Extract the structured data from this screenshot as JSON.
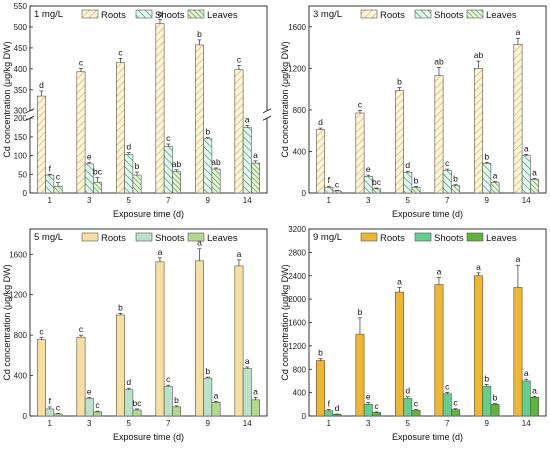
{
  "figure": {
    "series_names": [
      "Roots",
      "Shoots",
      "Leaves"
    ],
    "xlabel": "Exposure time (d)",
    "ylabel": "Cd concentration (μg/kg DW)"
  },
  "chart_data": [
    {
      "type": "bar",
      "title": "1 mg/L",
      "categories": [
        "1",
        "3",
        "5",
        "7",
        "9",
        "14"
      ],
      "xlabel": "Exposure time (d)",
      "ylabel": "Cd concentration (μg/kg DW)",
      "axis_break": true,
      "lower_range": [
        0,
        200
      ],
      "upper_range": [
        300,
        550
      ],
      "lower_ticks": [
        0,
        50,
        100,
        150,
        200
      ],
      "upper_ticks": [
        300,
        350,
        400,
        450,
        500,
        550
      ],
      "legend": "top-right",
      "fills": [
        "hatch-back",
        "hatch-fwd",
        "hatch-dense"
      ],
      "colors": {
        "Roots": "#e7c96a",
        "Shoots": "#4fb58f",
        "Leaves": "#5aa83c"
      },
      "series": [
        {
          "name": "Roots",
          "values": [
            335,
            393,
            415,
            508,
            457,
            398
          ],
          "errors": [
            12,
            8,
            10,
            10,
            12,
            10
          ],
          "letters": [
            "d",
            "c",
            "c",
            "a",
            "b",
            "c"
          ]
        },
        {
          "name": "Shoots",
          "values": [
            48,
            78,
            103,
            125,
            145,
            175
          ],
          "errors": [
            2,
            3,
            5,
            6,
            3,
            6
          ],
          "letters": [
            "f",
            "e",
            "d",
            "c",
            "b",
            "a"
          ]
        },
        {
          "name": "Leaves",
          "values": [
            18,
            29,
            48,
            57,
            64,
            80
          ],
          "errors": [
            10,
            12,
            8,
            5,
            3,
            6
          ],
          "letters": [
            "c",
            "bc",
            "b",
            "ab",
            "ab",
            "a"
          ]
        }
      ]
    },
    {
      "type": "bar",
      "title": "3 mg/L",
      "categories": [
        "1",
        "3",
        "5",
        "7",
        "9",
        "14"
      ],
      "xlabel": "Exposure time (d)",
      "ylabel": "Cd concentration (μg/kg DW)",
      "ylim": [
        0,
        1800
      ],
      "yticks": [
        0,
        400,
        800,
        1200,
        1600
      ],
      "legend": "top-right",
      "fills": [
        "hatch-back",
        "hatch-fwd",
        "hatch-dense"
      ],
      "colors": {
        "Roots": "#e7c96a",
        "Shoots": "#4fb58f",
        "Leaves": "#5aa83c"
      },
      "series": [
        {
          "name": "Roots",
          "values": [
            610,
            770,
            985,
            1130,
            1200,
            1430
          ],
          "errors": [
            15,
            25,
            30,
            80,
            70,
            60
          ],
          "letters": [
            "d",
            "c",
            "b",
            "ab",
            "ab",
            "a"
          ]
        },
        {
          "name": "Shoots",
          "values": [
            55,
            160,
            200,
            215,
            285,
            360
          ],
          "errors": [
            10,
            12,
            10,
            15,
            10,
            12
          ],
          "letters": [
            "f",
            "e",
            "d",
            "c",
            "b",
            "a"
          ]
        },
        {
          "name": "Leaves",
          "values": [
            20,
            40,
            55,
            70,
            100,
            130
          ],
          "errors": [
            5,
            8,
            8,
            10,
            10,
            10
          ],
          "letters": [
            "c",
            "bc",
            "b",
            "b",
            "a",
            "a"
          ]
        }
      ]
    },
    {
      "type": "bar",
      "title": "5 mg/L",
      "categories": [
        "1",
        "3",
        "5",
        "7",
        "9",
        "14"
      ],
      "xlabel": "Exposure time (d)",
      "ylabel": "Cd concentration (μg/kg DW)",
      "ylim": [
        0,
        1850
      ],
      "yticks": [
        0,
        400,
        800,
        1200,
        1600
      ],
      "legend": "top-right",
      "fills": [
        "solid",
        "solid",
        "solid"
      ],
      "colors": {
        "Roots": "#f8dfa0",
        "Shoots": "#b9e3c9",
        "Leaves": "#b3d98b"
      },
      "series": [
        {
          "name": "Roots",
          "values": [
            755,
            780,
            1000,
            1525,
            1535,
            1485
          ],
          "errors": [
            20,
            20,
            15,
            40,
            120,
            60
          ],
          "letters": [
            "c",
            "c",
            "b",
            "a",
            "a",
            "a"
          ]
        },
        {
          "name": "Shoots",
          "values": [
            70,
            175,
            260,
            290,
            375,
            470
          ],
          "errors": [
            20,
            10,
            15,
            15,
            10,
            15
          ],
          "letters": [
            "f",
            "e",
            "d",
            "c",
            "b",
            "a"
          ]
        },
        {
          "name": "Leaves",
          "values": [
            20,
            40,
            60,
            90,
            135,
            160
          ],
          "errors": [
            5,
            8,
            10,
            10,
            10,
            25
          ],
          "letters": [
            "c",
            "c",
            "bc",
            "b",
            "a",
            "a"
          ]
        }
      ]
    },
    {
      "type": "bar",
      "title": "9 mg/L",
      "categories": [
        "1",
        "3",
        "5",
        "7",
        "9",
        "14"
      ],
      "xlabel": "Exposure time (d)",
      "ylabel": "Cd concentration (μg/kg DW)",
      "ylim": [
        0,
        3200
      ],
      "yticks": [
        0,
        400,
        800,
        1200,
        1600,
        2000,
        2400,
        2800,
        3200
      ],
      "legend": "top-right",
      "fills": [
        "solid",
        "solid",
        "solid"
      ],
      "colors": {
        "Roots": "#f1b630",
        "Shoots": "#62cf8c",
        "Leaves": "#5db43b"
      },
      "series": [
        {
          "name": "Roots",
          "values": [
            950,
            1400,
            2120,
            2250,
            2400,
            2200
          ],
          "errors": [
            30,
            280,
            80,
            120,
            50,
            380
          ],
          "letters": [
            "b",
            "b",
            "a",
            "a",
            "a",
            "a"
          ]
        },
        {
          "name": "Shoots",
          "values": [
            90,
            200,
            300,
            380,
            510,
            600
          ],
          "errors": [
            20,
            30,
            30,
            25,
            30,
            30
          ],
          "letters": [
            "f",
            "e",
            "d",
            "c",
            "b",
            "a"
          ]
        },
        {
          "name": "Leaves",
          "values": [
            30,
            60,
            100,
            110,
            200,
            320
          ],
          "errors": [
            5,
            10,
            10,
            15,
            15,
            15
          ],
          "letters": [
            "d",
            "c",
            "c",
            "c",
            "b",
            "a"
          ]
        }
      ]
    }
  ]
}
